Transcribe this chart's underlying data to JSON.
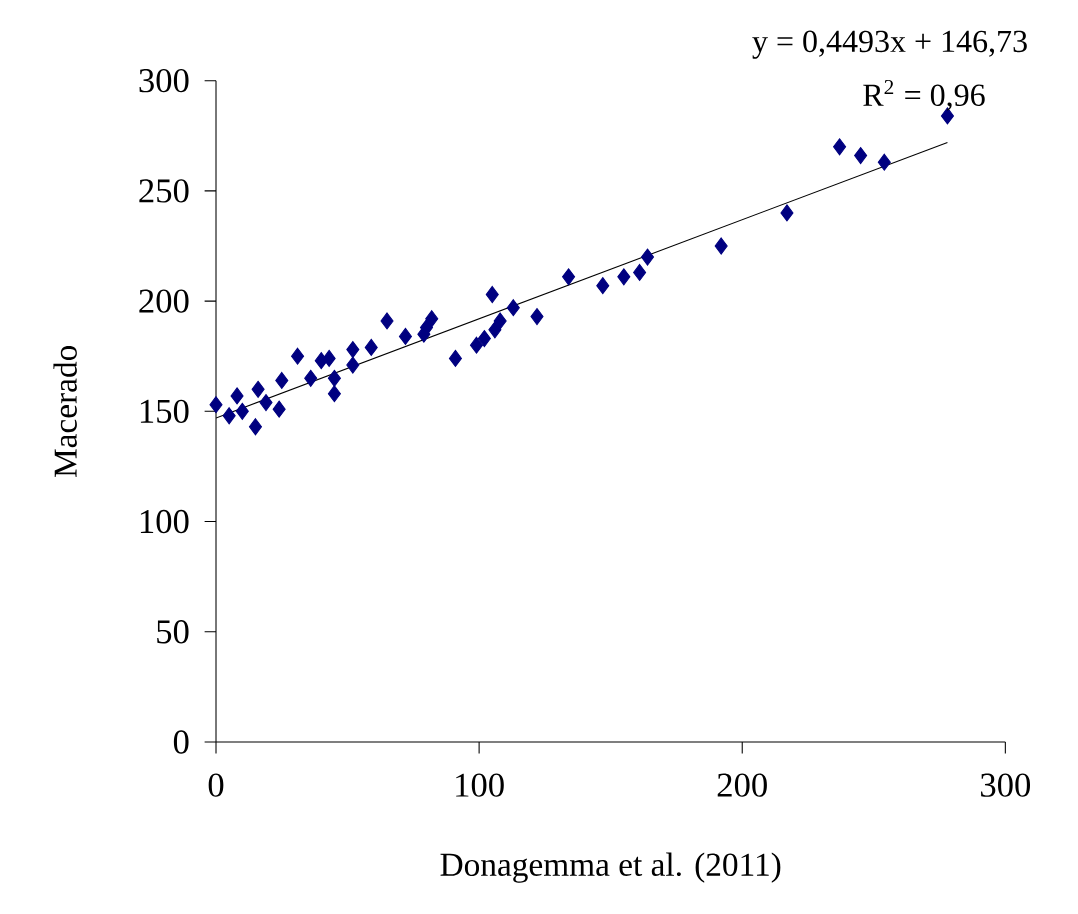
{
  "chart_data": {
    "type": "scatter",
    "xlabel": "Donagemma et al. (2011)",
    "ylabel": "Macerado",
    "annotations": [
      "y = 0,4493x + 146,73",
      "R$^{2}$  = 0,96"
    ],
    "xlim": [
      0,
      300
    ],
    "xticks": [
      0,
      100,
      200,
      300
    ],
    "ylim": [
      0,
      300
    ],
    "yticks": [
      0,
      50,
      100,
      150,
      200,
      250,
      300
    ],
    "grid": false,
    "series": [
      {
        "marker": "diamond",
        "color": "#000080",
        "x": [
          0,
          5,
          8,
          10,
          15,
          16,
          19,
          24,
          25,
          31,
          36,
          40,
          43,
          45,
          45,
          52,
          52,
          59,
          65,
          72,
          79,
          80,
          82,
          91,
          99,
          102,
          105,
          106,
          108,
          113,
          122,
          134,
          147,
          155,
          161,
          164,
          192,
          217,
          237,
          245,
          254,
          278
        ],
        "values": [
          153,
          148,
          157,
          150,
          143,
          160,
          154,
          151,
          164,
          175,
          165,
          173,
          174,
          165,
          158,
          178,
          171,
          179,
          191,
          184,
          185,
          188,
          192,
          174,
          180,
          183,
          203,
          187,
          191,
          197,
          193,
          211,
          207,
          211,
          213,
          220,
          225,
          240,
          270,
          266,
          263,
          284
        ]
      },
      {
        "type": "line",
        "marker": "none",
        "color": "#000000",
        "x": [
          0,
          278
        ],
        "values": [
          147,
          272
        ]
      }
    ]
  }
}
